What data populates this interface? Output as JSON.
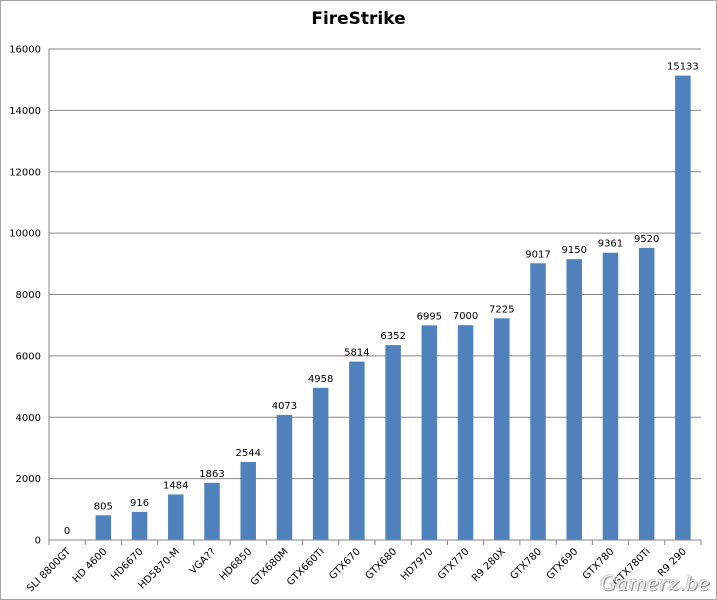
{
  "chart_data": {
    "type": "bar",
    "title": "FireStrike",
    "xlabel": "",
    "ylabel": "",
    "ylim": [
      0,
      16000
    ],
    "yticks": [
      0,
      2000,
      4000,
      6000,
      8000,
      10000,
      12000,
      14000,
      16000
    ],
    "grid": true,
    "legend": "none",
    "bar_color": "#4F81BD",
    "categories": [
      "SLI 8800GT",
      "HD 4600",
      "HD6670",
      "HD5870-M",
      "VGA??",
      "HD6850",
      "GTX680M",
      "GTX660Ti",
      "GTX670",
      "GTX680",
      "HD7970",
      "GTX770",
      "R9 280X",
      "GTX780",
      "GTX690",
      "GTX780",
      "GTX780Ti",
      "R9 290"
    ],
    "values": [
      0,
      805,
      916,
      1484,
      1863,
      2544,
      4073,
      4958,
      5814,
      6352,
      6995,
      7000,
      7225,
      9017,
      9150,
      9361,
      9520,
      15133
    ]
  },
  "watermark": "Gamerz.be"
}
